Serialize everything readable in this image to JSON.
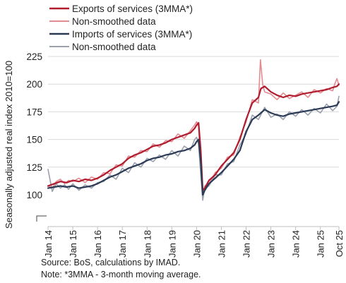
{
  "chart_data": {
    "type": "line",
    "title": "",
    "ylabel": "Seasonally adjusted real index 2010=100",
    "xlabel": "",
    "ylim": [
      100,
      225
    ],
    "yticks": [
      100,
      125,
      150,
      175,
      200,
      225
    ],
    "xlim": [
      2014.0,
      2025.75
    ],
    "x_ticks": [
      {
        "label": "Jan 14",
        "x": 2014.0
      },
      {
        "label": "Jan 15",
        "x": 2015.0
      },
      {
        "label": "Jan 16",
        "x": 2016.0
      },
      {
        "label": "Jan 17",
        "x": 2017.0
      },
      {
        "label": "Jan 18",
        "x": 2018.0
      },
      {
        "label": "Jan 19",
        "x": 2019.0
      },
      {
        "label": "Jan 20",
        "x": 2020.0
      },
      {
        "label": "Jan 21",
        "x": 2021.0
      },
      {
        "label": "Jan 22",
        "x": 2022.0
      },
      {
        "label": "Jan 23",
        "x": 2023.0
      },
      {
        "label": "Jan 24",
        "x": 2024.0
      },
      {
        "label": "Jan 25",
        "x": 2025.0
      },
      {
        "label": "Oct 25",
        "x": 2025.75
      }
    ],
    "grid": "horizontal",
    "legend": "top-left",
    "series": [
      {
        "name": "Exports of services (3MMA*)",
        "color": "#b01c2e",
        "x": [
          2014.0,
          2014.25,
          2014.5,
          2014.75,
          2015.0,
          2015.25,
          2015.5,
          2015.75,
          2016.0,
          2016.25,
          2016.5,
          2016.75,
          2017.0,
          2017.25,
          2017.5,
          2017.75,
          2018.0,
          2018.25,
          2018.5,
          2018.75,
          2019.0,
          2019.25,
          2019.5,
          2019.75,
          2019.92,
          2020.0,
          2020.08,
          2020.17,
          2020.25,
          2020.33,
          2020.5,
          2020.75,
          2021.0,
          2021.25,
          2021.5,
          2021.75,
          2022.0,
          2022.25,
          2022.5,
          2022.6,
          2022.75,
          2023.0,
          2023.25,
          2023.5,
          2023.75,
          2024.0,
          2024.25,
          2024.5,
          2024.75,
          2025.0,
          2025.25,
          2025.5,
          2025.67,
          2025.75
        ],
        "values": [
          108,
          110,
          112,
          111,
          113,
          112,
          114,
          113,
          115,
          118,
          122,
          125,
          128,
          133,
          136,
          138,
          141,
          144,
          145,
          147,
          150,
          152,
          154,
          156,
          160,
          163,
          165,
          140,
          104,
          106,
          113,
          118,
          126,
          132,
          138,
          150,
          168,
          183,
          188,
          196,
          198,
          193,
          190,
          188,
          190,
          189,
          191,
          192,
          193,
          194,
          195,
          197,
          198,
          200
        ]
      },
      {
        "name": "Non-smoothed data",
        "color": "#e28b91",
        "x": [
          2014.0,
          2014.17,
          2014.33,
          2014.5,
          2014.67,
          2014.83,
          2015.0,
          2015.25,
          2015.5,
          2015.75,
          2016.0,
          2016.25,
          2016.5,
          2016.75,
          2017.0,
          2017.25,
          2017.5,
          2017.75,
          2018.0,
          2018.25,
          2018.5,
          2018.75,
          2019.0,
          2019.25,
          2019.5,
          2019.75,
          2019.92,
          2020.0,
          2020.08,
          2020.17,
          2020.25,
          2020.33,
          2020.5,
          2020.75,
          2021.0,
          2021.25,
          2021.5,
          2021.75,
          2022.0,
          2022.25,
          2022.5,
          2022.58,
          2022.67,
          2022.75,
          2023.0,
          2023.25,
          2023.5,
          2023.75,
          2024.0,
          2024.25,
          2024.5,
          2024.75,
          2025.0,
          2025.25,
          2025.5,
          2025.58,
          2025.67,
          2025.75
        ],
        "values": [
          108,
          106,
          112,
          114,
          110,
          113,
          112,
          115,
          111,
          116,
          114,
          120,
          119,
          127,
          126,
          135,
          134,
          140,
          139,
          146,
          143,
          149,
          148,
          155,
          151,
          158,
          163,
          166,
          162,
          125,
          100,
          108,
          110,
          120,
          124,
          134,
          136,
          152,
          166,
          186,
          183,
          222,
          200,
          193,
          191,
          186,
          192,
          187,
          190,
          193,
          188,
          195,
          192,
          196,
          194,
          200,
          205,
          199
        ]
      },
      {
        "name": "Imports of services (3MMA*)",
        "color": "#2b3a55",
        "x": [
          2014.0,
          2014.25,
          2014.5,
          2014.75,
          2015.0,
          2015.25,
          2015.5,
          2015.75,
          2016.0,
          2016.25,
          2016.5,
          2016.75,
          2017.0,
          2017.25,
          2017.5,
          2017.75,
          2018.0,
          2018.25,
          2018.5,
          2018.75,
          2019.0,
          2019.25,
          2019.5,
          2019.75,
          2019.92,
          2020.0,
          2020.08,
          2020.17,
          2020.25,
          2020.33,
          2020.5,
          2020.75,
          2021.0,
          2021.25,
          2021.5,
          2021.75,
          2022.0,
          2022.25,
          2022.5,
          2022.75,
          2023.0,
          2023.25,
          2023.5,
          2023.75,
          2024.0,
          2024.25,
          2024.5,
          2024.75,
          2025.0,
          2025.25,
          2025.5,
          2025.67,
          2025.75
        ],
        "values": [
          106,
          107,
          108,
          107,
          108,
          106,
          107,
          108,
          110,
          113,
          116,
          118,
          121,
          124,
          126,
          128,
          131,
          133,
          134,
          136,
          137,
          139,
          140,
          142,
          145,
          148,
          150,
          130,
          100,
          104,
          110,
          115,
          120,
          126,
          132,
          140,
          157,
          168,
          172,
          177,
          174,
          172,
          171,
          173,
          174,
          175,
          176,
          177,
          178,
          179,
          180,
          181,
          184
        ]
      },
      {
        "name": "Non-smoothed data",
        "color": "#9ba0ad",
        "x": [
          2014.0,
          2014.17,
          2014.33,
          2014.5,
          2014.67,
          2014.83,
          2015.0,
          2015.25,
          2015.5,
          2015.75,
          2016.0,
          2016.25,
          2016.5,
          2016.75,
          2017.0,
          2017.25,
          2017.5,
          2017.75,
          2018.0,
          2018.25,
          2018.5,
          2018.75,
          2019.0,
          2019.25,
          2019.5,
          2019.75,
          2019.92,
          2020.0,
          2020.08,
          2020.17,
          2020.25,
          2020.33,
          2020.5,
          2020.75,
          2021.0,
          2021.25,
          2021.5,
          2021.75,
          2022.0,
          2022.25,
          2022.5,
          2022.75,
          2023.0,
          2023.25,
          2023.5,
          2023.75,
          2024.0,
          2024.25,
          2024.5,
          2024.75,
          2025.0,
          2025.25,
          2025.5,
          2025.67,
          2025.75
        ],
        "values": [
          123,
          103,
          110,
          106,
          109,
          105,
          110,
          104,
          109,
          106,
          111,
          112,
          118,
          114,
          124,
          120,
          129,
          125,
          133,
          130,
          136,
          132,
          140,
          135,
          144,
          140,
          150,
          152,
          146,
          118,
          95,
          106,
          108,
          118,
          118,
          128,
          130,
          145,
          155,
          172,
          168,
          179,
          170,
          173,
          168,
          175,
          171,
          177,
          172,
          178,
          174,
          182,
          176,
          180,
          189
        ]
      }
    ]
  },
  "footer": {
    "source": "Source: BoS, calculations by IMAD.",
    "note": "Note: *3MMA - 3-month moving average."
  }
}
